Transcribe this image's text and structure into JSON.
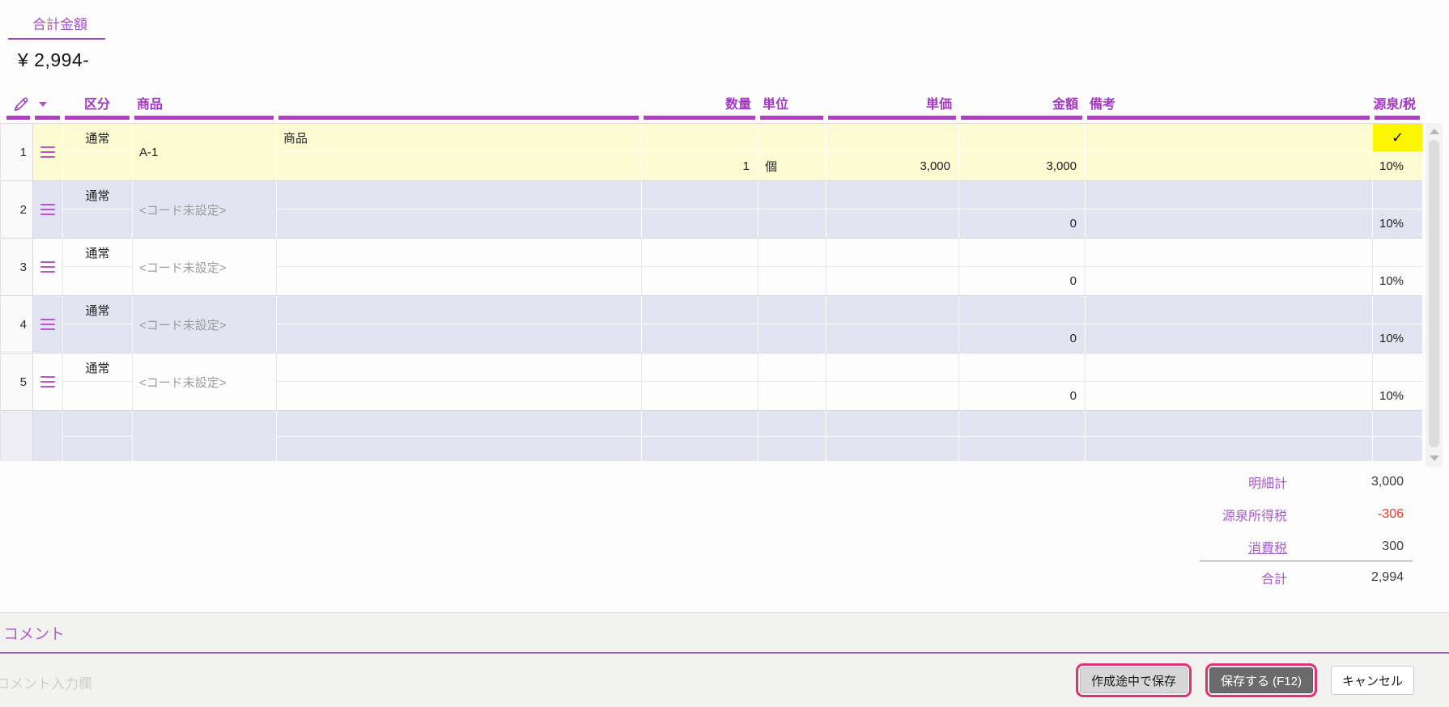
{
  "header": {
    "total_label": "合計金額",
    "total_value": "¥ 2,994-"
  },
  "table": {
    "columns": [
      "区分",
      "商品",
      "数量",
      "単位",
      "単価",
      "金額",
      "備考",
      "源泉/税"
    ],
    "check_glyph": "✓",
    "rows": [
      {
        "num": "1",
        "category": "通常",
        "code": "A-1",
        "code_placeholder": false,
        "name": "商品",
        "qty": "1",
        "unit": "個",
        "unit_price": "3,000",
        "amount": "3,000",
        "note": "",
        "tax_rate": "10%",
        "withholding_checked": true,
        "selected": true
      },
      {
        "num": "2",
        "category": "通常",
        "code": "<コード未設定>",
        "code_placeholder": true,
        "name": "",
        "qty": "",
        "unit": "",
        "unit_price": "",
        "amount": "0",
        "note": "",
        "tax_rate": "10%",
        "withholding_checked": false
      },
      {
        "num": "3",
        "category": "通常",
        "code": "<コード未設定>",
        "code_placeholder": true,
        "name": "",
        "qty": "",
        "unit": "",
        "unit_price": "",
        "amount": "0",
        "note": "",
        "tax_rate": "10%",
        "withholding_checked": false
      },
      {
        "num": "4",
        "category": "通常",
        "code": "<コード未設定>",
        "code_placeholder": true,
        "name": "",
        "qty": "",
        "unit": "",
        "unit_price": "",
        "amount": "0",
        "note": "",
        "tax_rate": "10%",
        "withholding_checked": false
      },
      {
        "num": "5",
        "category": "通常",
        "code": "<コード未設定>",
        "code_placeholder": true,
        "name": "",
        "qty": "",
        "unit": "",
        "unit_price": "",
        "amount": "0",
        "note": "",
        "tax_rate": "10%",
        "withholding_checked": false
      },
      {
        "empty": true
      }
    ]
  },
  "summary": {
    "rows": [
      {
        "label": "明細計",
        "value": "3,000"
      },
      {
        "label": "源泉所得税",
        "value": "-306",
        "negative": true
      },
      {
        "label": "消費税",
        "value": "300",
        "link": true
      },
      {
        "label": "合計",
        "value": "2,994",
        "grand_total": true
      }
    ]
  },
  "comment": {
    "label": "コメント",
    "placeholder": "コメント入力欄"
  },
  "buttons": [
    {
      "label": "作成途中で保存",
      "style": "secondary",
      "highlighted": true
    },
    {
      "label": "保存する (F12)",
      "style": "primary",
      "highlighted": true
    },
    {
      "label": "キャンセル",
      "style": "plain",
      "highlighted": false
    }
  ],
  "icons": {
    "edit_column": "pencil-icon",
    "edit_column_caret": "chevron-down-icon",
    "row_handle": "hamburger-icon",
    "withholding_check": "check-icon"
  },
  "colors": {
    "accent_purple": "#a238c2",
    "bar_purple": "#b03fc2",
    "highlight_yellow": "#fcf500",
    "row_yellow": "#fdfbd1",
    "row_lavender": "#e3e4f1",
    "ring_pink": "#dc3377",
    "negative_red": "#f23724"
  }
}
